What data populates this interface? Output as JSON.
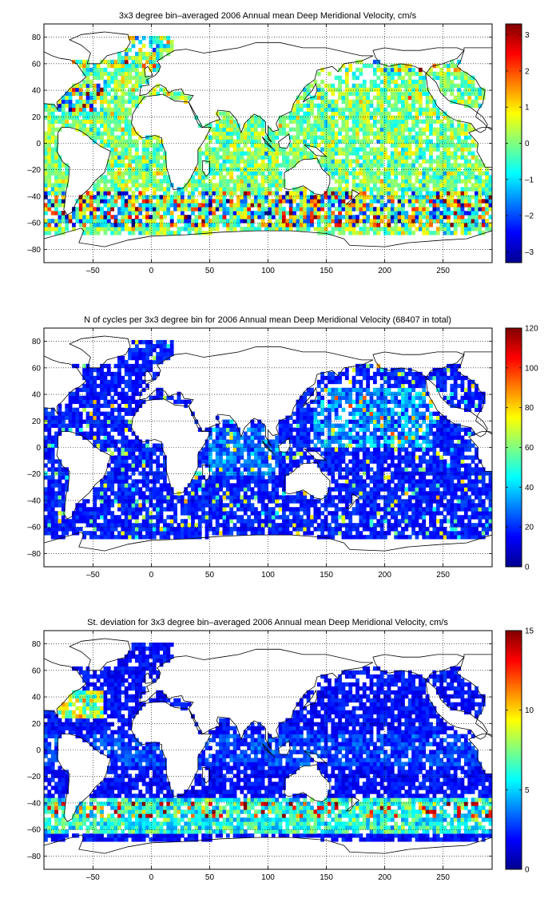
{
  "colors": {
    "land_outline": "#000000",
    "grid": "#000000",
    "frame": "#000000",
    "colormap": "jet"
  },
  "chart_data": [
    {
      "type": "heatmap",
      "title": "3x3 degree bin–averaged 2006 Annual mean Deep Meridional Velocity, cm/s",
      "xlabel": "",
      "ylabel": "",
      "xlim": [
        -92,
        292
      ],
      "ylim": [
        -90,
        90
      ],
      "xticks": [
        -50,
        0,
        50,
        100,
        150,
        200,
        250
      ],
      "yticks": [
        -80,
        -60,
        -40,
        -20,
        0,
        20,
        40,
        60,
        80
      ],
      "grid": true,
      "colorbar": {
        "min": -3.3,
        "max": 3.3,
        "ticks": [
          -3,
          -2,
          -1,
          0,
          1,
          2,
          3
        ]
      },
      "bin_size_deg": 3,
      "field": "velocity",
      "seed": 11
    },
    {
      "type": "heatmap",
      "title": "N of cycles per 3x3 degree bin for 2006 Annual mean Deep Meridional Velocity (68407 in total)",
      "xlabel": "",
      "ylabel": "",
      "xlim": [
        -92,
        292
      ],
      "ylim": [
        -90,
        90
      ],
      "xticks": [
        -50,
        0,
        50,
        100,
        150,
        200,
        250
      ],
      "yticks": [
        -80,
        -60,
        -40,
        -20,
        0,
        20,
        40,
        60,
        80
      ],
      "grid": true,
      "colorbar": {
        "min": 0,
        "max": 120,
        "ticks": [
          0,
          20,
          40,
          60,
          80,
          100,
          120
        ]
      },
      "bin_size_deg": 3,
      "field": "count",
      "seed": 23
    },
    {
      "type": "heatmap",
      "title": "St. deviation for 3x3 degree bin–averaged 2006 Annual mean Deep Meridional Velocity, cm/s",
      "xlabel": "",
      "ylabel": "",
      "xlim": [
        -92,
        292
      ],
      "ylim": [
        -90,
        90
      ],
      "xticks": [
        -50,
        0,
        50,
        100,
        150,
        200,
        250
      ],
      "yticks": [
        -80,
        -60,
        -40,
        -20,
        0,
        20,
        40,
        60,
        80
      ],
      "grid": true,
      "colorbar": {
        "min": 0,
        "max": 15,
        "ticks": [
          0,
          5,
          10,
          15
        ]
      },
      "bin_size_deg": 3,
      "field": "stdev",
      "seed": 37
    }
  ]
}
